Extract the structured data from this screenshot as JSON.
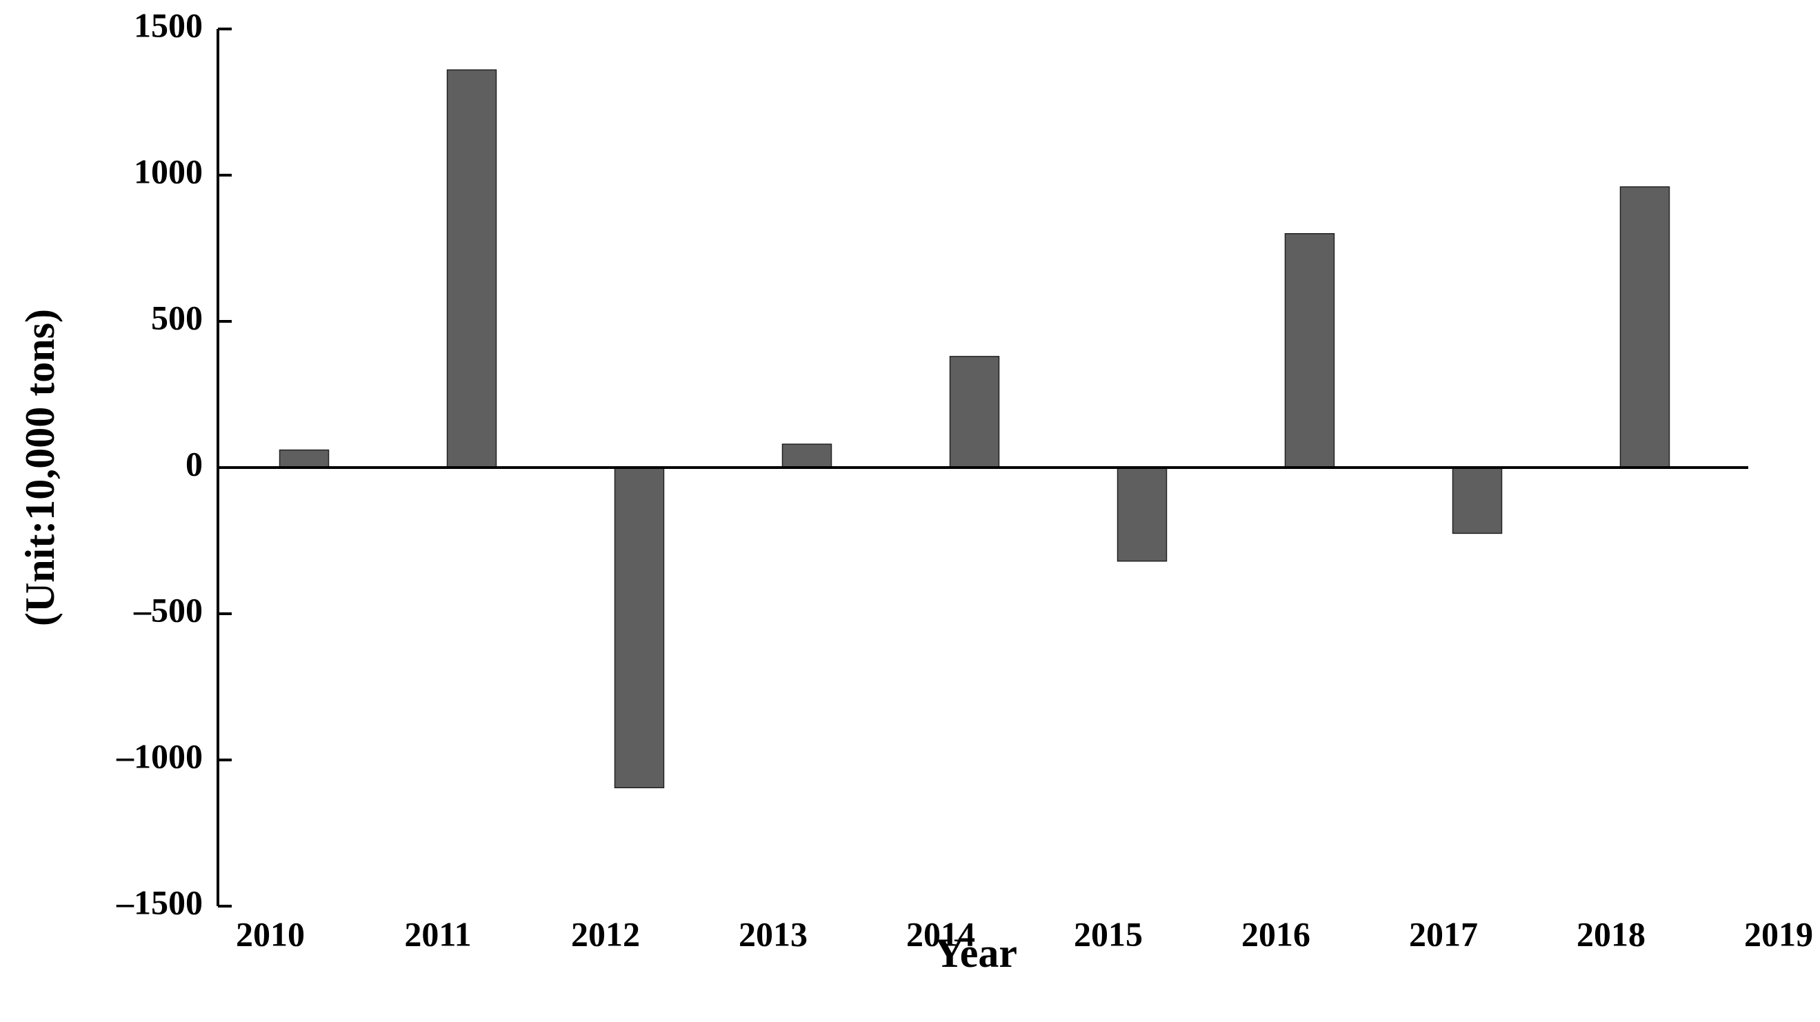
{
  "chart_data": {
    "type": "bar",
    "x_label": "Year",
    "y_label": "(Unit:10,000 tons)",
    "categories": [
      "2010",
      "2011",
      "2012",
      "2013",
      "2014",
      "2015",
      "2016",
      "2017",
      "2018",
      "2019"
    ],
    "values": [
      60,
      1360,
      -1095,
      80,
      380,
      -320,
      800,
      -225,
      960,
      null
    ],
    "color": "#5f5f5f",
    "ylim": [
      -1500,
      1500
    ],
    "yticks": [
      {
        "value": -1500,
        "label": "–1500"
      },
      {
        "value": -1000,
        "label": "–1000"
      },
      {
        "value": -500,
        "label": "–500"
      },
      0,
      500,
      1000,
      1500
    ],
    "grid": false
  }
}
